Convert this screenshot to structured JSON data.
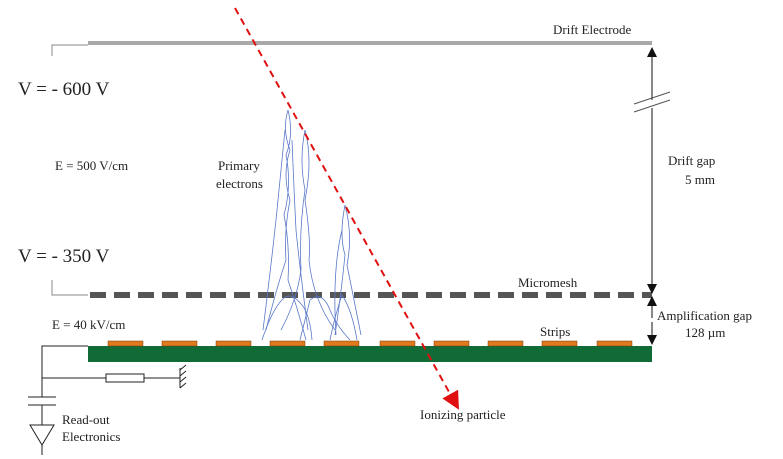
{
  "labels": {
    "drift_electrode": "Drift Electrode",
    "v_top": "V = - 600 V",
    "e_drift": "E = 500 V/cm",
    "primary_electrons": [
      "Primary",
      "electrons"
    ],
    "drift_gap": [
      "Drift gap",
      "5 mm"
    ],
    "v_mesh": "V = - 350 V",
    "micromesh": "Micromesh",
    "amplification_gap": [
      "Amplification gap",
      "128 µm"
    ],
    "e_amp": "E = 40 kV/cm",
    "strips": "Strips",
    "readout": [
      "Read-out",
      "Electronics"
    ],
    "ionizing_particle": "Ionizing particle"
  }
}
